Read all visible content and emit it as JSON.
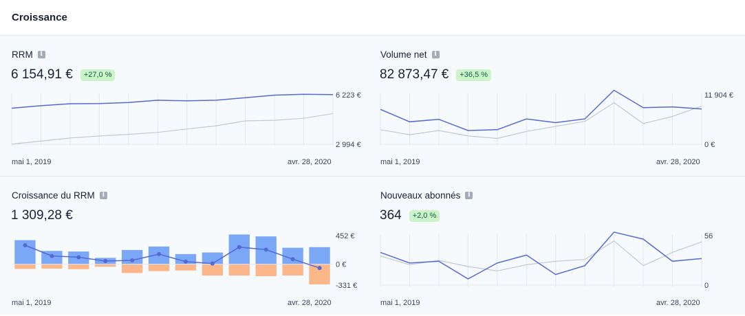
{
  "header": {
    "title": "Croissance"
  },
  "colors": {
    "primary": "#5469d4",
    "prior": "#c1c9d2",
    "bar_positive": "#7ba7f7",
    "bar_negative": "#fbb68a",
    "badge_bg": "#cbf4c9",
    "badge_text": "#0e6245"
  },
  "panels": {
    "rrm": {
      "title": "RRM",
      "value": "6 154,91 €",
      "change": "+27,0 %",
      "start_date": "mai 1, 2019",
      "end_date": "avr. 28, 2020"
    },
    "volume": {
      "title": "Volume net",
      "value": "82 873,47 €",
      "change": "+36,5 %",
      "start_date": "mai 1, 2019",
      "end_date": "avr. 28, 2020"
    },
    "growth": {
      "title": "Croissance du RRM",
      "value": "1 309,28 €",
      "start_date": "mai 1, 2019",
      "end_date": "avr. 28, 2020"
    },
    "subscribers": {
      "title": "Nouveaux abonnés",
      "value": "364",
      "change": "+2,0 %",
      "start_date": "mai 1, 2019",
      "end_date": "avr. 28, 2020"
    }
  },
  "chart_data": [
    {
      "type": "line",
      "ytick_labels": [
        "6 223 €",
        "2 994 €"
      ],
      "ylim": [
        2994,
        6223
      ],
      "series": [
        {
          "values": [
            5350,
            5510,
            5640,
            5650,
            5720,
            5870,
            5830,
            5870,
            6030,
            6200,
            6260,
            6230
          ]
        },
        {
          "values": [
            3000,
            3200,
            3400,
            3530,
            3640,
            3770,
            3990,
            4200,
            4520,
            4560,
            4690,
            5000
          ]
        }
      ],
      "grid": true
    },
    {
      "type": "line",
      "ytick_labels": [
        "11 904 €",
        "0 €"
      ],
      "ylim": [
        0,
        11904
      ],
      "series": [
        {
          "values": [
            8400,
            5400,
            6000,
            3300,
            3500,
            6100,
            5200,
            6100,
            13000,
            8800,
            9000,
            8500
          ]
        },
        {
          "values": [
            3500,
            2300,
            3300,
            2000,
            1400,
            3100,
            4300,
            5500,
            10000,
            5000,
            6700,
            9200
          ]
        }
      ],
      "grid": true
    },
    {
      "type": "bar",
      "ytick_labels": [
        "452 €",
        "0 €",
        "-331 €"
      ],
      "ylim": [
        -331,
        452
      ],
      "positive": [
        380,
        210,
        200,
        100,
        225,
        280,
        160,
        185,
        470,
        440,
        260,
        270
      ],
      "negative": [
        -75,
        -70,
        -80,
        -40,
        -140,
        -110,
        -100,
        -180,
        -180,
        -190,
        -180,
        -320
      ],
      "net": [
        300,
        130,
        110,
        50,
        60,
        160,
        40,
        10,
        270,
        230,
        80,
        -60
      ],
      "grid": true
    },
    {
      "type": "line",
      "ytick_labels": [
        "56",
        "0"
      ],
      "ylim": [
        0,
        56
      ],
      "series": [
        {
          "values": [
            37,
            25,
            27,
            7,
            25,
            34,
            12,
            22,
            60,
            52,
            27,
            30
          ]
        },
        {
          "values": [
            33,
            23,
            28,
            21,
            16,
            23,
            27,
            29,
            50,
            22,
            37,
            49
          ]
        }
      ],
      "grid": true
    }
  ]
}
